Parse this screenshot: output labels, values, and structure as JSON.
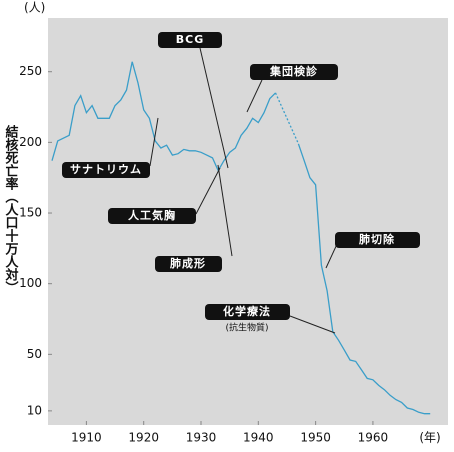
{
  "chart_data": {
    "type": "line",
    "y_unit": "(人)",
    "x_unit": "(年)",
    "y_label": "結核死亡率（人口十万人対）",
    "annotations": [
      "BCG",
      "集団検診",
      "サナトリウム",
      "人工気胸",
      "肺成形",
      "肺切除",
      "化学療法",
      "(抗生物質)"
    ],
    "x": [
      1904,
      1905,
      1907,
      1908,
      1909,
      1910,
      1911,
      1912,
      1913,
      1914,
      1915,
      1916,
      1917,
      1918,
      1919,
      1920,
      1921,
      1922,
      1923,
      1924,
      1925,
      1926,
      1927,
      1928,
      1929,
      1930,
      1931,
      1932,
      1933,
      1934,
      1935,
      1936,
      1937,
      1938,
      1939,
      1940,
      1941,
      1942,
      1943,
      1944,
      1945,
      1946,
      1947,
      1948,
      1949,
      1950,
      1951,
      1952,
      1953,
      1954,
      1955,
      1956,
      1957,
      1958,
      1959,
      1960,
      1961,
      1962,
      1963,
      1964,
      1965,
      1966,
      1967,
      1968,
      1969,
      1970
    ],
    "series": [
      {
        "color": "#3a9ec9",
        "values": [
          187,
          201,
          205,
          226,
          233,
          221,
          226,
          217,
          217,
          217,
          226,
          230,
          237,
          257,
          242,
          223,
          217,
          201,
          196,
          198,
          191,
          192,
          195,
          194,
          194,
          193,
          191,
          189,
          180,
          187,
          193,
          196,
          205,
          210,
          217,
          214,
          221,
          231,
          235,
          null,
          null,
          null,
          199,
          187,
          175,
          170,
          113,
          95,
          66,
          60,
          53,
          46,
          45,
          39,
          33,
          32,
          28,
          25,
          21,
          18,
          16,
          12,
          11,
          9,
          8,
          8
        ]
      }
    ],
    "gap_style": "dashed",
    "xlim": [
      1903.3,
      1973.1
    ],
    "ylim": [
      0,
      288
    ],
    "xticks": [
      1910,
      1920,
      1930,
      1940,
      1950,
      1960
    ],
    "yticks": [
      10,
      50,
      100,
      150,
      200,
      250
    ]
  }
}
